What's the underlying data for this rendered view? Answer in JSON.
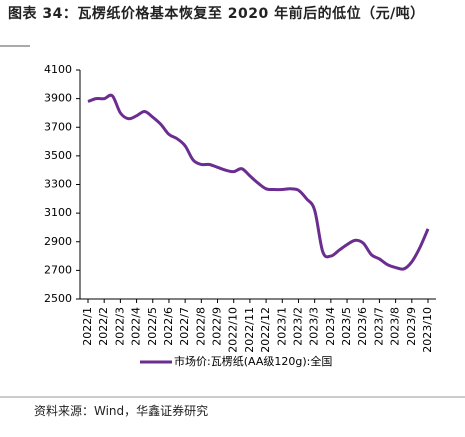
{
  "chart_data": {
    "type": "line",
    "title": "图表 34：瓦楞纸价格基本恢复至 2020 年前后的低位（元/吨）",
    "source": "资料来源：Wind，华鑫证券研究",
    "categories": [
      "2022/1",
      null,
      "2022/2",
      null,
      "2022/3",
      null,
      "2022/4",
      null,
      "2022/5",
      null,
      "2022/6",
      null,
      "2022/7",
      null,
      "2022/8",
      null,
      "2022/9",
      null,
      "2022/10",
      null,
      "2022/11",
      null,
      "2022/12",
      null,
      "2023/1",
      null,
      "2023/2",
      null,
      "2023/3",
      null,
      "2023/4",
      null,
      "2023/5",
      null,
      "2023/6",
      null,
      "2023/7",
      null,
      "2023/8",
      null,
      "2023/9",
      null,
      "2023/10"
    ],
    "series": [
      {
        "name": "市场价:瓦楞纸(AA级120g):全国",
        "color": "#6b2d90",
        "values": [
          3880,
          3900,
          3900,
          3920,
          3800,
          3760,
          3780,
          3810,
          3770,
          3720,
          3650,
          3620,
          3570,
          3470,
          3440,
          3440,
          3420,
          3400,
          3390,
          3410,
          3360,
          3310,
          3270,
          3265,
          3265,
          3270,
          3260,
          3200,
          3120,
          2830,
          2800,
          2840,
          2880,
          2910,
          2890,
          2810,
          2780,
          2740,
          2720,
          2710,
          2760,
          2860,
          2990
        ]
      }
    ],
    "ylim": [
      2500,
      4100
    ],
    "yticks": [
      2500,
      2700,
      2900,
      3100,
      3300,
      3500,
      3700,
      3900,
      4100
    ]
  }
}
